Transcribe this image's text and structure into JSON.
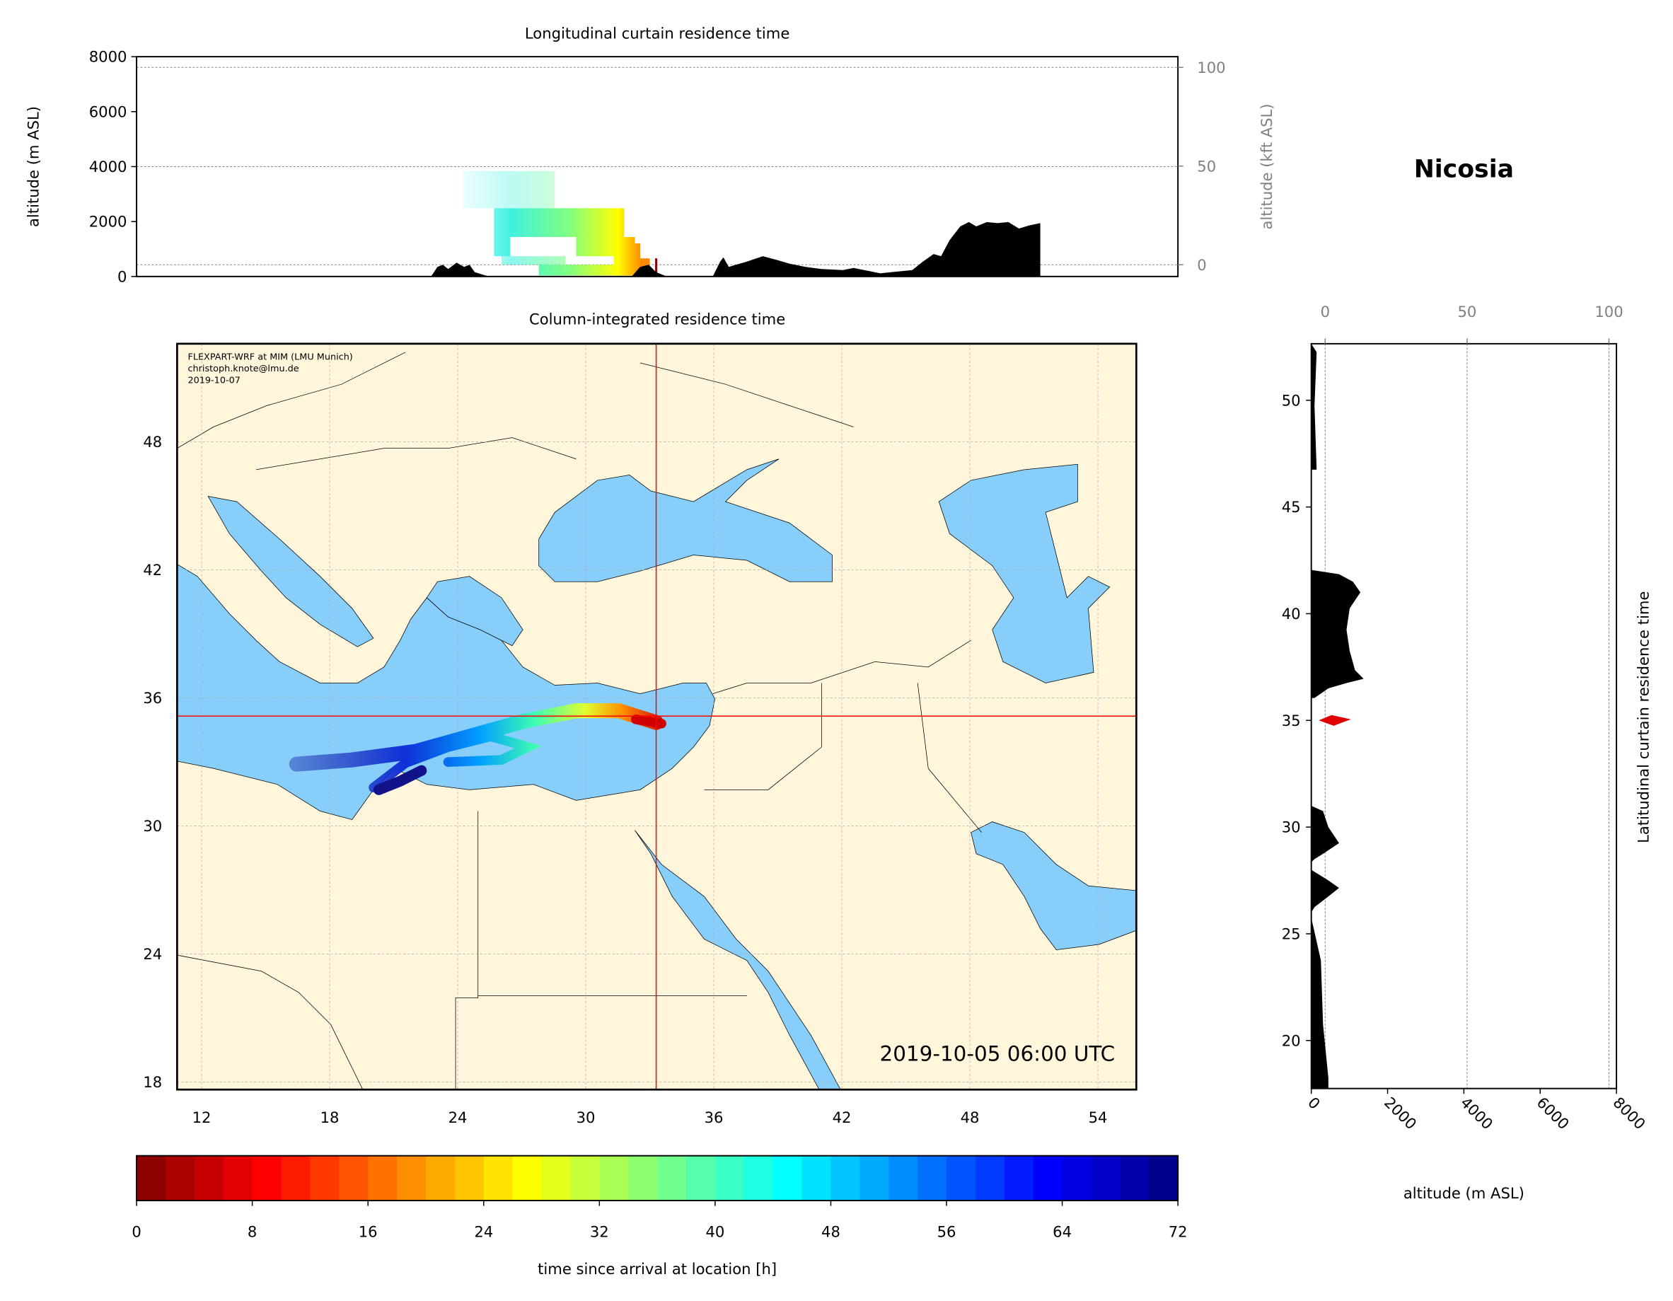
{
  "chart_data": [
    {
      "type": "area",
      "title": "Longitudinal curtain residence time",
      "ylabel": "altitude (m ASL)",
      "ylabel_right": "altitude (kft ASL)",
      "ylim": [
        0,
        8000
      ],
      "yticks": [
        0,
        2000,
        4000,
        6000,
        8000
      ],
      "yticks_right": [
        0,
        50,
        100
      ],
      "grid": true
    },
    {
      "type": "heatmap",
      "title": "Column-integrated residence time",
      "xticks": [
        12,
        18,
        24,
        30,
        36,
        42,
        48,
        54
      ],
      "yticks": [
        18,
        24,
        30,
        36,
        42,
        48
      ],
      "xlim": [
        10.85,
        55.8
      ],
      "ylim": [
        17.65,
        52.6
      ],
      "crosshair": {
        "lon": 33.3,
        "lat": 35.15
      },
      "timestamp": "2019-10-05 06:00 UTC",
      "credits": [
        "FLEXPART-WRF at MIM (LMU Munich)",
        "christoph.knote@lmu.de",
        "2019-10-07"
      ],
      "grid": true
    },
    {
      "type": "area",
      "title": "Latitudinal curtain residence time",
      "xlabel": "altitude (m ASL)",
      "xticks": [
        0,
        2000,
        4000,
        6000,
        8000
      ],
      "xticks_top": [
        0,
        50,
        100
      ],
      "yticks": [
        20,
        25,
        30,
        35,
        40,
        45,
        50
      ],
      "ylim": [
        17.75,
        52.65
      ],
      "xlim": [
        0,
        8000
      ]
    },
    {
      "type": "colorbar",
      "label": "time since arrival at location [h]",
      "range": [
        0,
        72
      ],
      "ticks": [
        0,
        8,
        16,
        24,
        32,
        40,
        48,
        56,
        64,
        72
      ],
      "colormap": "jet_r"
    }
  ],
  "station": "Nicosia",
  "colors": {
    "land": "#fff6dc",
    "sea": "#87cefa",
    "crosshair": "#ff0000",
    "terrain": "#000000"
  }
}
